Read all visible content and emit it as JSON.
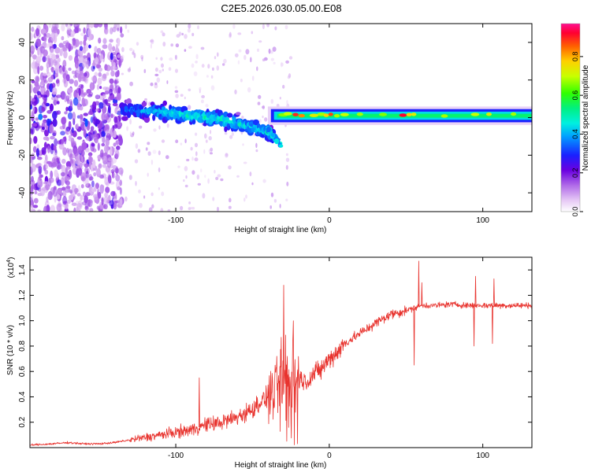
{
  "title": "C2E5.2026.030.05.00.E08",
  "chart_data": [
    {
      "type": "heatmap",
      "name": "spectrogram",
      "xlabel": "Height of straight line (km)",
      "ylabel": "Frequency (Hz)",
      "xlim": [
        -195,
        132
      ],
      "ylim": [
        -50,
        50
      ],
      "xticks": [
        -100,
        0,
        100
      ],
      "xtick_labels": [
        "-100",
        "0",
        "100"
      ],
      "yticks": [
        -40,
        -20,
        0,
        20,
        40
      ],
      "ytick_labels": [
        "-40",
        "-20",
        "0",
        "20",
        "40"
      ],
      "colorbar": {
        "label": "Normalized spectral amplitude",
        "range": [
          0,
          0.97
        ],
        "ticks": [
          0,
          0.2,
          0.4,
          0.6,
          0.8
        ],
        "tick_labels": [
          "0.0",
          "0.2",
          "0.4",
          "0.6",
          "0.8"
        ]
      },
      "features": {
        "noise_region_x": [
          -195,
          -135
        ],
        "ridge_points": [
          {
            "x": -135,
            "freq": 4,
            "amp": 0.35
          },
          {
            "x": -110,
            "freq": 3,
            "amp": 0.45
          },
          {
            "x": -90,
            "freq": 1,
            "amp": 0.5
          },
          {
            "x": -70,
            "freq": -1,
            "amp": 0.5
          },
          {
            "x": -50,
            "freq": -5,
            "amp": 0.45
          },
          {
            "x": -40,
            "freq": -8,
            "amp": 0.45
          },
          {
            "x": -32,
            "freq": -14,
            "amp": 0.45
          },
          {
            "x": -35,
            "freq": 4,
            "amp": 0.5
          },
          {
            "x": -20,
            "freq": 2,
            "amp": 0.9
          },
          {
            "x": 0,
            "freq": 1,
            "amp": 0.6
          },
          {
            "x": 50,
            "freq": 1,
            "amp": 0.85
          },
          {
            "x": 100,
            "freq": 1,
            "amp": 0.6
          },
          {
            "x": 132,
            "freq": 0,
            "amp": 0.6
          }
        ],
        "band_halfwidth_hz": 3.5
      }
    },
    {
      "type": "line",
      "name": "snr",
      "xlabel": "Height of straight line (km)",
      "ylabel": "SNR (10 * v/v)",
      "yscale_label": "(x10",
      "yscale_exponent": "4",
      "xlim": [
        -195,
        132
      ],
      "ylim": [
        0,
        1.5
      ],
      "xticks": [
        -100,
        0,
        100
      ],
      "xtick_labels": [
        "-100",
        "0",
        "100"
      ],
      "yticks": [
        0.2,
        0.4,
        0.6,
        0.8,
        1.0,
        1.2,
        1.4
      ],
      "ytick_labels": [
        "0.2",
        "0.4",
        "0.6",
        "0.8",
        "1.0",
        "1.2",
        "1.4"
      ],
      "color": "#e8332e",
      "series": [
        {
          "name": "SNR",
          "x": [
            -195,
            -180,
            -170,
            -160,
            -150,
            -140,
            -130,
            -120,
            -110,
            -100,
            -90,
            -80,
            -70,
            -60,
            -50,
            -45,
            -40,
            -35,
            -30,
            -25,
            -20,
            -15,
            -10,
            -5,
            0,
            5,
            10,
            20,
            30,
            40,
            50,
            55,
            60,
            70,
            80,
            90,
            100,
            110,
            120,
            132
          ],
          "values": [
            0.02,
            0.03,
            0.04,
            0.03,
            0.03,
            0.04,
            0.06,
            0.08,
            0.1,
            0.12,
            0.14,
            0.18,
            0.2,
            0.24,
            0.3,
            0.36,
            0.4,
            0.45,
            0.55,
            0.5,
            0.55,
            0.52,
            0.58,
            0.62,
            0.7,
            0.75,
            0.82,
            0.9,
            0.98,
            1.05,
            1.08,
            1.1,
            1.12,
            1.12,
            1.13,
            1.12,
            1.12,
            1.12,
            1.12,
            1.12
          ]
        }
      ],
      "spikes": [
        {
          "x": -85,
          "value": 0.55
        },
        {
          "x": -30,
          "value": 1.28
        },
        {
          "x": -28,
          "value": 0.05
        },
        {
          "x": -21,
          "value": 0.03
        },
        {
          "x": 55,
          "value": 0.65
        },
        {
          "x": 58,
          "value": 1.47
        },
        {
          "x": 60,
          "value": 1.3
        },
        {
          "x": 94,
          "value": 0.8
        },
        {
          "x": 95,
          "value": 1.35
        },
        {
          "x": 106,
          "value": 0.82
        },
        {
          "x": 107,
          "value": 1.33
        }
      ]
    }
  ]
}
